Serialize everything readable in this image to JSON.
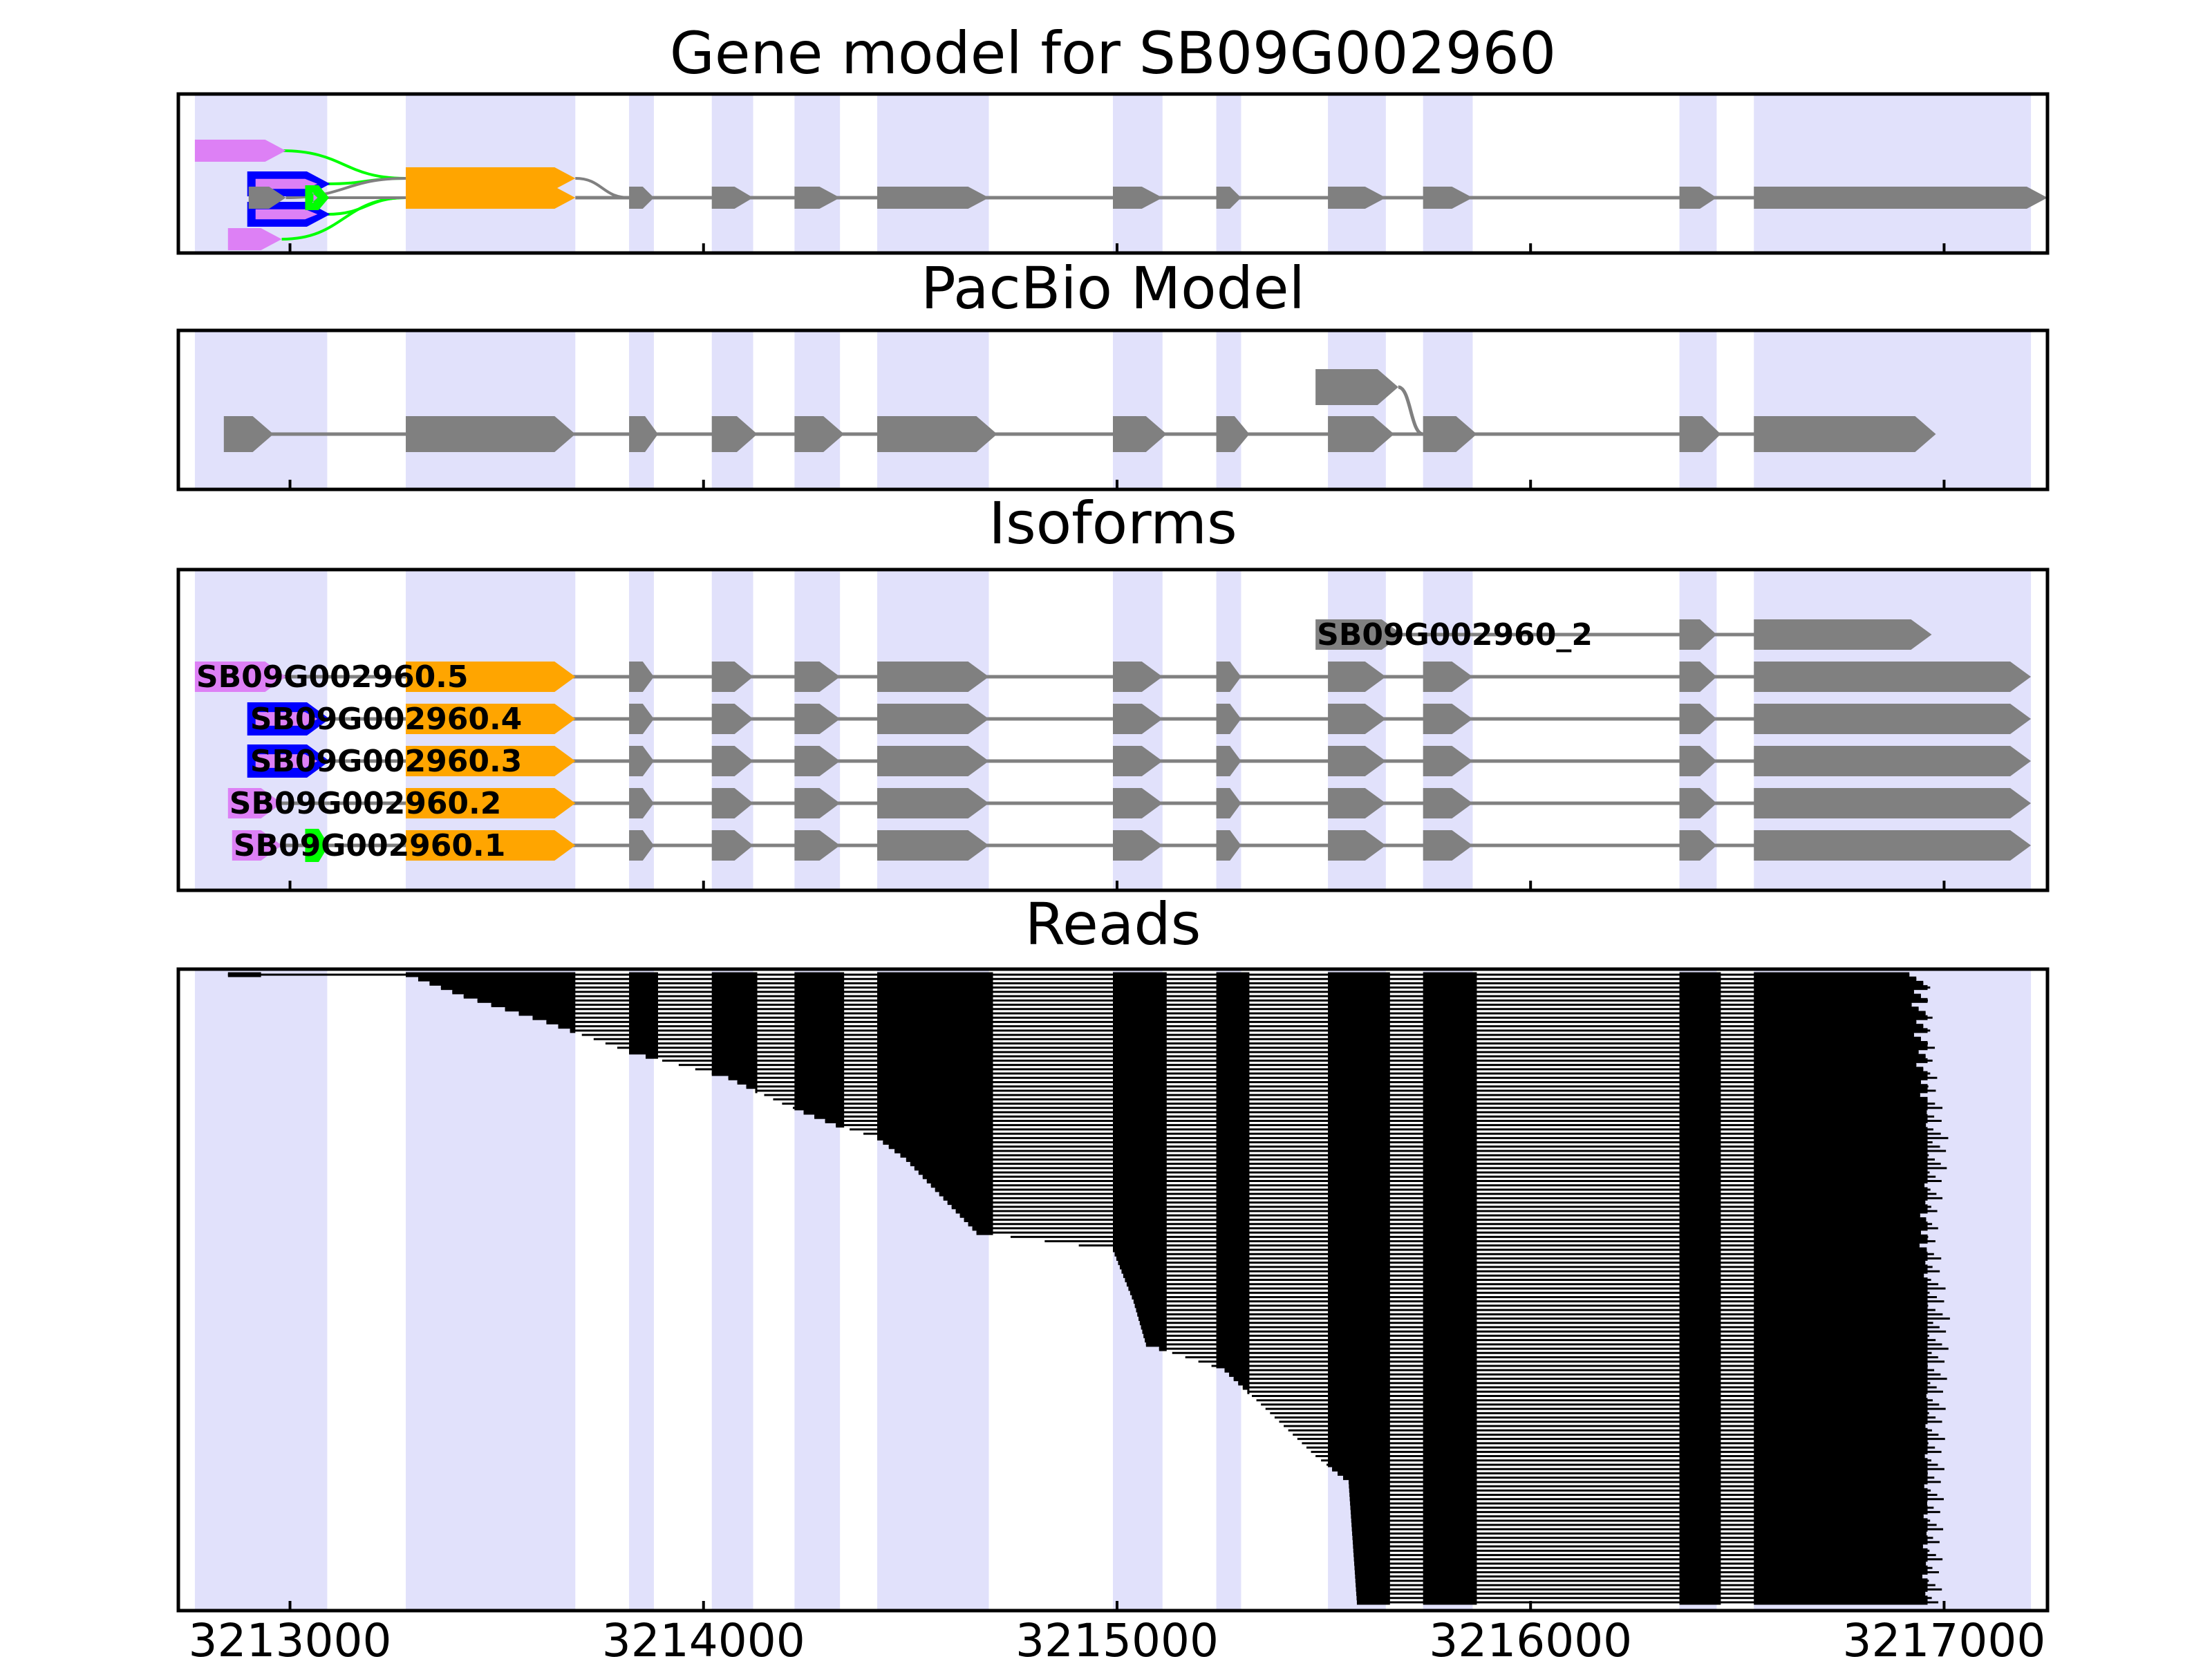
{
  "colors": {
    "exon_band": "#e1e1fb",
    "gray": "#808080",
    "orange": "#ffa500",
    "violet": "#dd80f5",
    "blue": "#0000ff",
    "green": "#00ff00",
    "read": "#000000"
  },
  "chart_data": {
    "type": "gene_structure",
    "x_axis": {
      "range": [
        3212730,
        3217250
      ],
      "ticks": [
        3213000,
        3214000,
        3215000,
        3216000,
        3217000
      ],
      "tick_labels": [
        "3213000",
        "3214000",
        "3215000",
        "3216000",
        "3217000"
      ]
    },
    "exon_bands": [
      [
        3212770,
        3213090
      ],
      [
        3213280,
        3213690
      ],
      [
        3213820,
        3213880
      ],
      [
        3214020,
        3214120
      ],
      [
        3214220,
        3214330
      ],
      [
        3214420,
        3214690
      ],
      [
        3214990,
        3215110
      ],
      [
        3215240,
        3215300
      ],
      [
        3215510,
        3215650
      ],
      [
        3215740,
        3215860
      ],
      [
        3216360,
        3216450
      ],
      [
        3216540,
        3217210
      ]
    ],
    "panels": [
      {
        "title": "Gene model for SB09G002960",
        "features": [
          {
            "color": "violet",
            "outline": false,
            "lane": 2.6,
            "start": 3212770,
            "end": 3212990
          },
          {
            "color": "violet",
            "outline": false,
            "lane": -0.6,
            "start": 3212850,
            "end": 3212980
          },
          {
            "color": "blue",
            "outline": true,
            "lane": 1.4,
            "start": 3212900,
            "end": 3213090
          },
          {
            "color": "blue",
            "outline": true,
            "lane": 0.3,
            "start": 3212900,
            "end": 3213090
          },
          {
            "color": "gray",
            "outline": false,
            "lane": 0.9,
            "start": 3212900,
            "end": 3212990
          },
          {
            "color": "green",
            "outline": true,
            "lane": 0.9,
            "start": 3213040,
            "end": 3213090
          },
          {
            "color": "orange",
            "outline": false,
            "lane": 1.6,
            "start": 3213280,
            "end": 3213690
          },
          {
            "color": "orange",
            "outline": false,
            "lane": 0.9,
            "start": 3213280,
            "end": 3213690
          }
        ],
        "main_line": {
          "lane": 0.9,
          "start": 3213690,
          "end": 3217250
        },
        "exons": [
          [
            3213820,
            3213880
          ],
          [
            3214020,
            3214120
          ],
          [
            3214220,
            3214330
          ],
          [
            3214420,
            3214690
          ],
          [
            3214990,
            3215110
          ],
          [
            3215240,
            3215300
          ],
          [
            3215510,
            3215650
          ],
          [
            3215740,
            3215860
          ],
          [
            3216360,
            3216450
          ],
          [
            3216540,
            3217250
          ]
        ]
      },
      {
        "title": "PacBio Model",
        "main_lane": 0.9,
        "alt_lane": 2.6,
        "main_exons": [
          [
            3212840,
            3212960
          ],
          [
            3213280,
            3213690
          ],
          [
            3213820,
            3213890
          ],
          [
            3214020,
            3214130
          ],
          [
            3214220,
            3214340
          ],
          [
            3214420,
            3214710
          ],
          [
            3214990,
            3215120
          ],
          [
            3215240,
            3215320
          ],
          [
            3215510,
            3215670
          ],
          [
            3215740,
            3215870
          ],
          [
            3216360,
            3216460
          ],
          [
            3216540,
            3216980
          ]
        ],
        "alt_exon": [
          3215480,
          3215680
        ]
      },
      {
        "title": "Isoforms",
        "transcripts": [
          {
            "label": "SB09G002960_2",
            "row": 0,
            "exons": [
              [
                3215480,
                3215690
              ],
              [
                3216360,
                3216450
              ],
              [
                3216540,
                3216970
              ]
            ]
          },
          {
            "label": "SB09G002960.5",
            "row": 1,
            "exons": [
              [
                3212770,
                3212990
              ],
              [
                3213280,
                3213690
              ],
              [
                3213820,
                3213880
              ],
              [
                3214020,
                3214120
              ],
              [
                3214220,
                3214330
              ],
              [
                3214420,
                3214690
              ],
              [
                3214990,
                3215110
              ],
              [
                3215240,
                3215300
              ],
              [
                3215510,
                3215650
              ],
              [
                3215740,
                3215860
              ],
              [
                3216360,
                3216450
              ],
              [
                3216540,
                3217210
              ]
            ]
          },
          {
            "label": "SB09G002960.4",
            "row": 2,
            "exons": [
              [
                3212900,
                3213090
              ],
              [
                3213280,
                3213690
              ],
              [
                3213820,
                3213880
              ],
              [
                3214020,
                3214120
              ],
              [
                3214220,
                3214330
              ],
              [
                3214420,
                3214690
              ],
              [
                3214990,
                3215110
              ],
              [
                3215240,
                3215300
              ],
              [
                3215510,
                3215650
              ],
              [
                3215740,
                3215860
              ],
              [
                3216360,
                3216450
              ],
              [
                3216540,
                3217210
              ]
            ]
          },
          {
            "label": "SB09G002960.3",
            "row": 3,
            "exons": [
              [
                3212900,
                3213090
              ],
              [
                3213280,
                3213690
              ],
              [
                3213820,
                3213880
              ],
              [
                3214020,
                3214120
              ],
              [
                3214220,
                3214330
              ],
              [
                3214420,
                3214690
              ],
              [
                3214990,
                3215110
              ],
              [
                3215240,
                3215300
              ],
              [
                3215510,
                3215650
              ],
              [
                3215740,
                3215860
              ],
              [
                3216360,
                3216450
              ],
              [
                3216540,
                3217210
              ]
            ]
          },
          {
            "label": "SB09G002960.2",
            "row": 4,
            "exons": [
              [
                3212850,
                3212980
              ],
              [
                3213280,
                3213690
              ],
              [
                3213820,
                3213880
              ],
              [
                3214020,
                3214120
              ],
              [
                3214220,
                3214330
              ],
              [
                3214420,
                3214690
              ],
              [
                3214990,
                3215110
              ],
              [
                3215240,
                3215300
              ],
              [
                3215510,
                3215650
              ],
              [
                3215740,
                3215860
              ],
              [
                3216360,
                3216450
              ],
              [
                3216540,
                3217210
              ]
            ]
          },
          {
            "label": "SB09G002960.1",
            "row": 5,
            "exons": [
              [
                3212860,
                3212980
              ],
              [
                3213040,
                3213090
              ],
              [
                3213280,
                3213690
              ],
              [
                3213820,
                3213880
              ],
              [
                3214020,
                3214120
              ],
              [
                3214220,
                3214330
              ],
              [
                3214420,
                3214690
              ],
              [
                3214990,
                3215110
              ],
              [
                3215240,
                3215300
              ],
              [
                3215510,
                3215650
              ],
              [
                3215740,
                3215860
              ],
              [
                3216360,
                3216450
              ],
              [
                3216540,
                3217210
              ]
            ]
          }
        ]
      },
      {
        "title": "Reads",
        "read_count": 147,
        "exon_columns": [
          [
            3213280,
            3213690
          ],
          [
            3213820,
            3213890
          ],
          [
            3214020,
            3214130
          ],
          [
            3214220,
            3214340
          ],
          [
            3214420,
            3214700
          ],
          [
            3214990,
            3215120
          ],
          [
            3215240,
            3215320
          ],
          [
            3215510,
            3215660
          ],
          [
            3215740,
            3215870
          ],
          [
            3216360,
            3216460
          ],
          [
            3216540,
            3216960
          ]
        ],
        "start_profile": [
          [
            0,
            3212850
          ],
          [
            1,
            3213310
          ],
          [
            5,
            3213420
          ],
          [
            11,
            3213620
          ],
          [
            18,
            3213820
          ],
          [
            24,
            3214060
          ],
          [
            30,
            3214190
          ],
          [
            35,
            3214320
          ],
          [
            38,
            3214420
          ],
          [
            43,
            3214490
          ],
          [
            50,
            3214560
          ],
          [
            60,
            3214660
          ],
          [
            64,
            3214990
          ],
          [
            76,
            3215040
          ],
          [
            86,
            3215070
          ],
          [
            92,
            3215260
          ],
          [
            112,
            3215480
          ],
          [
            118,
            3215560
          ],
          [
            146,
            3215580
          ]
        ],
        "end_profile": [
          [
            0,
            3216940
          ],
          [
            25,
            3216960
          ],
          [
            40,
            3216990
          ],
          [
            60,
            3216960
          ],
          [
            80,
            3216990
          ],
          [
            100,
            3216980
          ],
          [
            146,
            3216970
          ]
        ]
      }
    ]
  }
}
